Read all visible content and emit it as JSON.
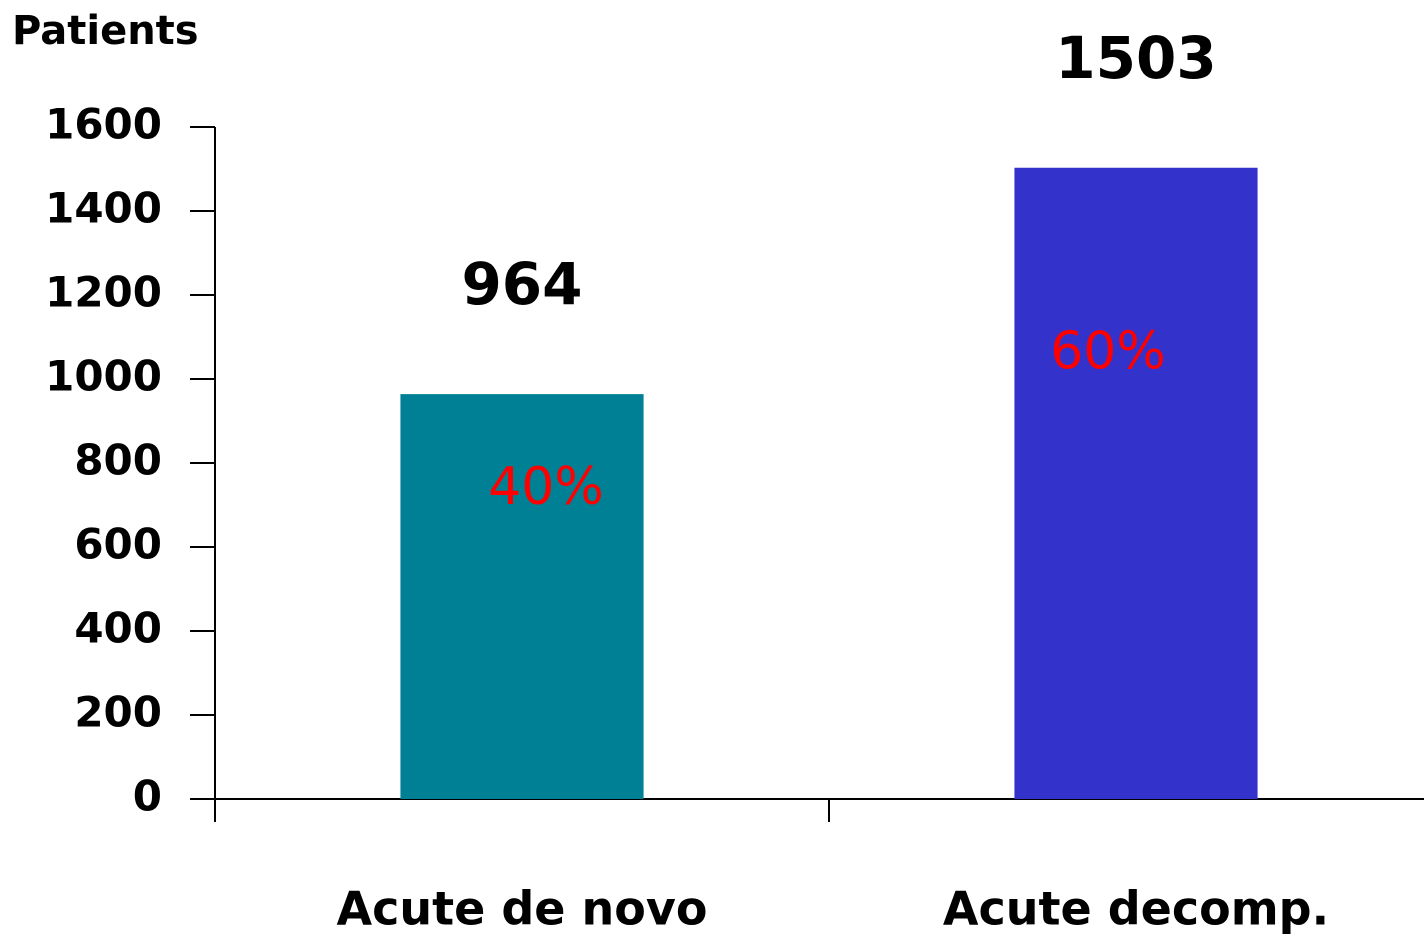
{
  "chart_data": {
    "type": "bar",
    "y_label": "Patients",
    "categories": [
      "Acute de novo",
      "Acute decomp."
    ],
    "values": [
      964,
      1503
    ],
    "colors": [
      "#008094",
      "#3333cc"
    ],
    "shares": [
      40,
      60
    ],
    "share_labels": [
      "40%",
      "60%"
    ],
    "ylim": [
      0,
      1600
    ],
    "yticks": [
      0,
      200,
      400,
      600,
      800,
      1000,
      1200,
      1400,
      1600
    ]
  }
}
